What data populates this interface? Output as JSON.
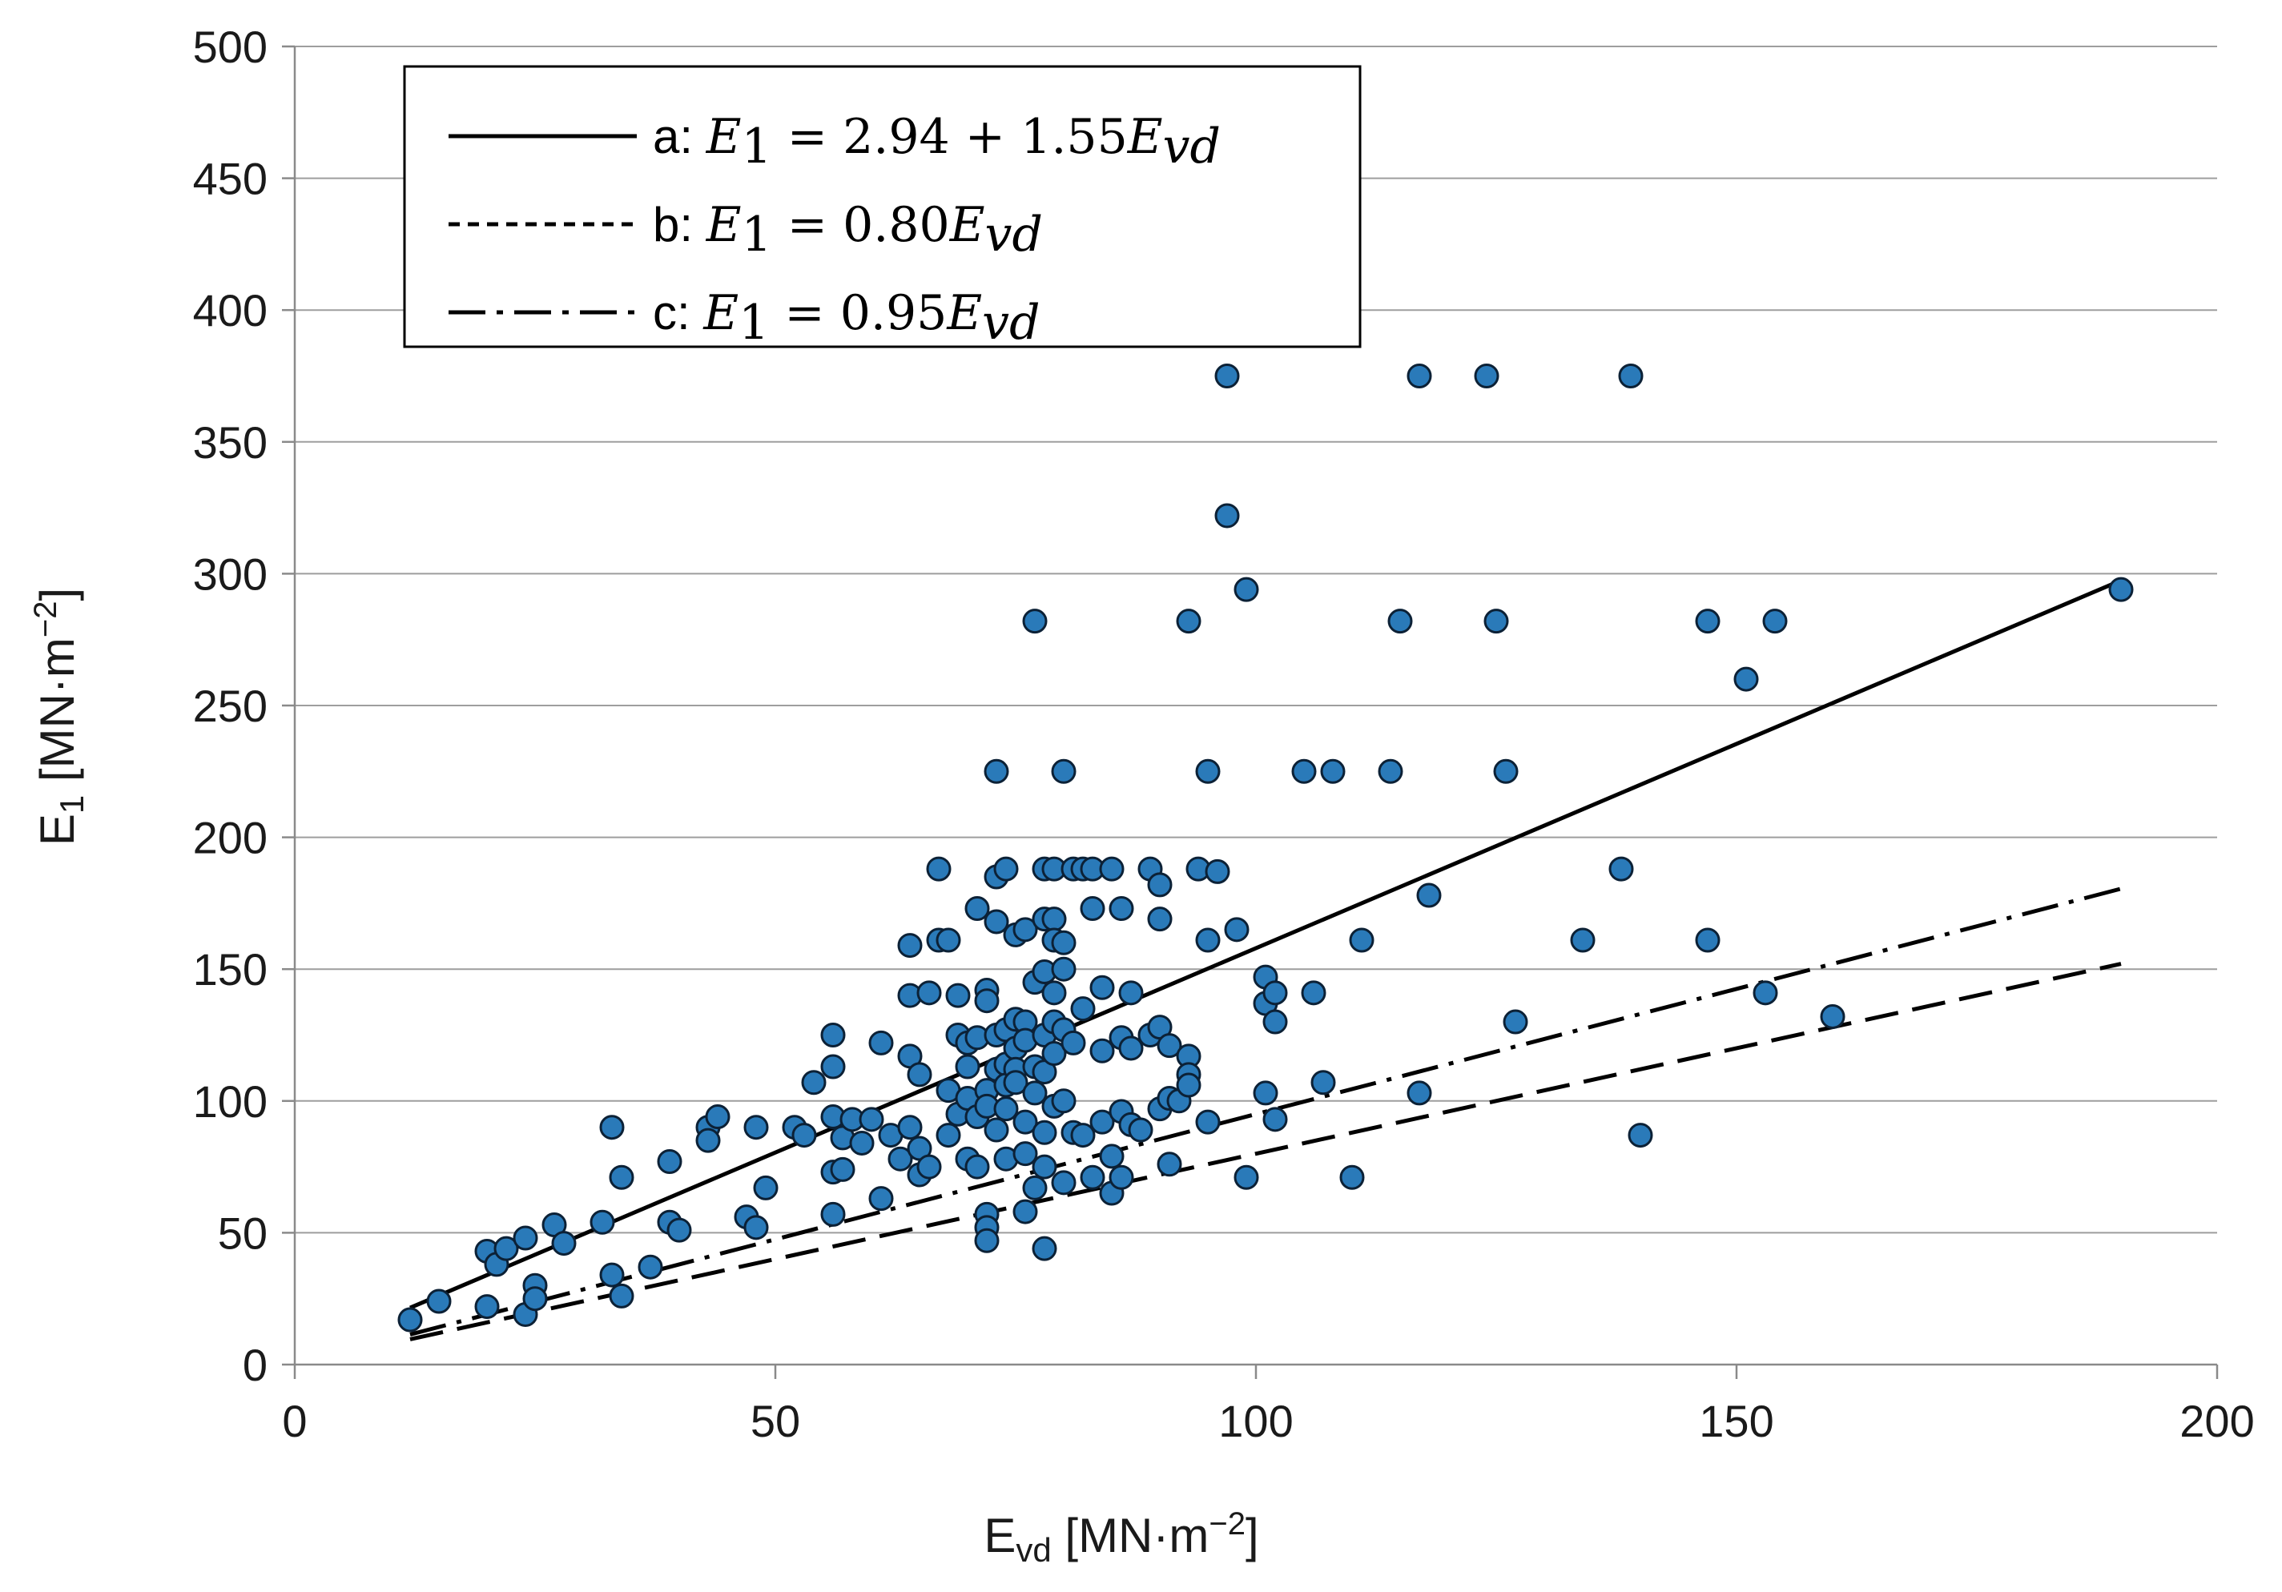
{
  "chart_data": {
    "type": "scatter",
    "xlabel": "E",
    "xlabel_sub": "vd",
    "xlabel_unit": "[MN·m",
    "xlabel_unit_exp": "−2",
    "xlabel_unit_close": "]",
    "ylabel": "E",
    "ylabel_sub": "1",
    "ylabel_unit": "[MN·m",
    "ylabel_unit_exp": "−2",
    "ylabel_unit_close": "]",
    "xlim": [
      0,
      200
    ],
    "ylim": [
      0,
      500
    ],
    "xticks": [
      0,
      50,
      100,
      150,
      200
    ],
    "yticks": [
      0,
      50,
      100,
      150,
      200,
      250,
      300,
      350,
      400,
      450,
      500
    ],
    "grid": true,
    "legend_position": "top-left",
    "lines": [
      {
        "name": "a",
        "style": "solid",
        "intercept": 2.94,
        "slope": 1.55,
        "x_range": [
          12,
          190
        ],
        "label_prefix": "a: ",
        "label_lhs": "E",
        "label_lhs_sub": "1",
        "label_rhs": " = 2.94 + 1.55",
        "label_var": "E",
        "label_var_sub": "vd"
      },
      {
        "name": "b",
        "style": "dashed",
        "intercept": 0,
        "slope": 0.8,
        "x_range": [
          12,
          190
        ],
        "label_prefix": "b: ",
        "label_lhs": "E",
        "label_lhs_sub": "1",
        "label_rhs": " = 0.80",
        "label_var": "E",
        "label_var_sub": "vd"
      },
      {
        "name": "c",
        "style": "dash-dot",
        "intercept": 0,
        "slope": 0.95,
        "x_range": [
          12,
          190
        ],
        "label_prefix": "c: ",
        "label_lhs": "E",
        "label_lhs_sub": "1",
        "label_rhs": " = 0.95",
        "label_var": "E",
        "label_var_sub": "vd"
      }
    ],
    "series": [
      {
        "name": "measurements",
        "points": [
          [
            12,
            17
          ],
          [
            15,
            24
          ],
          [
            20,
            22
          ],
          [
            20,
            43
          ],
          [
            21,
            38
          ],
          [
            22,
            44
          ],
          [
            24,
            48
          ],
          [
            24,
            19
          ],
          [
            25,
            30
          ],
          [
            25,
            25
          ],
          [
            27,
            53
          ],
          [
            28,
            46
          ],
          [
            32,
            54
          ],
          [
            33,
            90
          ],
          [
            33,
            34
          ],
          [
            34,
            71
          ],
          [
            34,
            26
          ],
          [
            37,
            37
          ],
          [
            39,
            54
          ],
          [
            39,
            77
          ],
          [
            40,
            51
          ],
          [
            43,
            90
          ],
          [
            43,
            85
          ],
          [
            44,
            94
          ],
          [
            47,
            56
          ],
          [
            48,
            90
          ],
          [
            48,
            52
          ],
          [
            49,
            67
          ],
          [
            52,
            90
          ],
          [
            53,
            87
          ],
          [
            54,
            107
          ],
          [
            56,
            125
          ],
          [
            56,
            113
          ],
          [
            56,
            94
          ],
          [
            56,
            57
          ],
          [
            56,
            73
          ],
          [
            57,
            74
          ],
          [
            57,
            86
          ],
          [
            58,
            93
          ],
          [
            59,
            84
          ],
          [
            60,
            93
          ],
          [
            61,
            122
          ],
          [
            61,
            63
          ],
          [
            62,
            87
          ],
          [
            63,
            78
          ],
          [
            64,
            159
          ],
          [
            64,
            140
          ],
          [
            64,
            117
          ],
          [
            64,
            90
          ],
          [
            65,
            110
          ],
          [
            65,
            82
          ],
          [
            65,
            72
          ],
          [
            66,
            141
          ],
          [
            66,
            75
          ],
          [
            67,
            188
          ],
          [
            67,
            161
          ],
          [
            68,
            161
          ],
          [
            68,
            104
          ],
          [
            68,
            87
          ],
          [
            69,
            140
          ],
          [
            69,
            125
          ],
          [
            69,
            95
          ],
          [
            70,
            122
          ],
          [
            70,
            113
          ],
          [
            70,
            101
          ],
          [
            70,
            78
          ],
          [
            71,
            173
          ],
          [
            71,
            124
          ],
          [
            71,
            94
          ],
          [
            71,
            75
          ],
          [
            72,
            142
          ],
          [
            72,
            138
          ],
          [
            72,
            104
          ],
          [
            72,
            98
          ],
          [
            72,
            57
          ],
          [
            72,
            52
          ],
          [
            72,
            47
          ],
          [
            73,
            225
          ],
          [
            73,
            185
          ],
          [
            73,
            168
          ],
          [
            73,
            125
          ],
          [
            73,
            112
          ],
          [
            73,
            89
          ],
          [
            74,
            188
          ],
          [
            74,
            127
          ],
          [
            74,
            114
          ],
          [
            74,
            106
          ],
          [
            74,
            97
          ],
          [
            74,
            78
          ],
          [
            75,
            163
          ],
          [
            75,
            131
          ],
          [
            75,
            120
          ],
          [
            75,
            112
          ],
          [
            75,
            107
          ],
          [
            76,
            165
          ],
          [
            76,
            130
          ],
          [
            76,
            123
          ],
          [
            76,
            92
          ],
          [
            76,
            80
          ],
          [
            76,
            58
          ],
          [
            77,
            282
          ],
          [
            77,
            145
          ],
          [
            77,
            113
          ],
          [
            77,
            103
          ],
          [
            77,
            67
          ],
          [
            78,
            188
          ],
          [
            78,
            169
          ],
          [
            78,
            149
          ],
          [
            78,
            125
          ],
          [
            78,
            111
          ],
          [
            78,
            88
          ],
          [
            78,
            75
          ],
          [
            78,
            44
          ],
          [
            79,
            188
          ],
          [
            79,
            169
          ],
          [
            79,
            161
          ],
          [
            79,
            141
          ],
          [
            79,
            130
          ],
          [
            79,
            118
          ],
          [
            79,
            98
          ],
          [
            80,
            225
          ],
          [
            80,
            160
          ],
          [
            80,
            150
          ],
          [
            80,
            127
          ],
          [
            80,
            100
          ],
          [
            80,
            69
          ],
          [
            81,
            188
          ],
          [
            81,
            122
          ],
          [
            81,
            88
          ],
          [
            82,
            188
          ],
          [
            82,
            135
          ],
          [
            82,
            87
          ],
          [
            83,
            188
          ],
          [
            83,
            173
          ],
          [
            83,
            71
          ],
          [
            84,
            143
          ],
          [
            84,
            119
          ],
          [
            84,
            92
          ],
          [
            85,
            188
          ],
          [
            85,
            79
          ],
          [
            85,
            65
          ],
          [
            86,
            173
          ],
          [
            86,
            124
          ],
          [
            86,
            96
          ],
          [
            86,
            71
          ],
          [
            87,
            141
          ],
          [
            87,
            120
          ],
          [
            87,
            91
          ],
          [
            88,
            89
          ],
          [
            89,
            188
          ],
          [
            89,
            125
          ],
          [
            90,
            169
          ],
          [
            90,
            128
          ],
          [
            90,
            97
          ],
          [
            90,
            182
          ],
          [
            91,
            121
          ],
          [
            91,
            101
          ],
          [
            91,
            76
          ],
          [
            92,
            100
          ],
          [
            93,
            117
          ],
          [
            93,
            110
          ],
          [
            93,
            106
          ],
          [
            93,
            282
          ],
          [
            94,
            188
          ],
          [
            95,
            225
          ],
          [
            95,
            161
          ],
          [
            95,
            92
          ],
          [
            96,
            187
          ],
          [
            97,
            375
          ],
          [
            97,
            322
          ],
          [
            98,
            165
          ],
          [
            99,
            71
          ],
          [
            99,
            294
          ],
          [
            101,
            147
          ],
          [
            101,
            137
          ],
          [
            101,
            103
          ],
          [
            102,
            141
          ],
          [
            102,
            130
          ],
          [
            102,
            93
          ],
          [
            105,
            225
          ],
          [
            106,
            141
          ],
          [
            107,
            107
          ],
          [
            108,
            225
          ],
          [
            110,
            71
          ],
          [
            111,
            161
          ],
          [
            114,
            225
          ],
          [
            115,
            282
          ],
          [
            117,
            375
          ],
          [
            117,
            103
          ],
          [
            118,
            178
          ],
          [
            124,
            375
          ],
          [
            125,
            282
          ],
          [
            126,
            225
          ],
          [
            127,
            130
          ],
          [
            134,
            161
          ],
          [
            138,
            188
          ],
          [
            139,
            375
          ],
          [
            140,
            87
          ],
          [
            147,
            282
          ],
          [
            147,
            161
          ],
          [
            151,
            260
          ],
          [
            153,
            141
          ],
          [
            154,
            282
          ],
          [
            160,
            132
          ],
          [
            190,
            294
          ]
        ]
      }
    ]
  }
}
